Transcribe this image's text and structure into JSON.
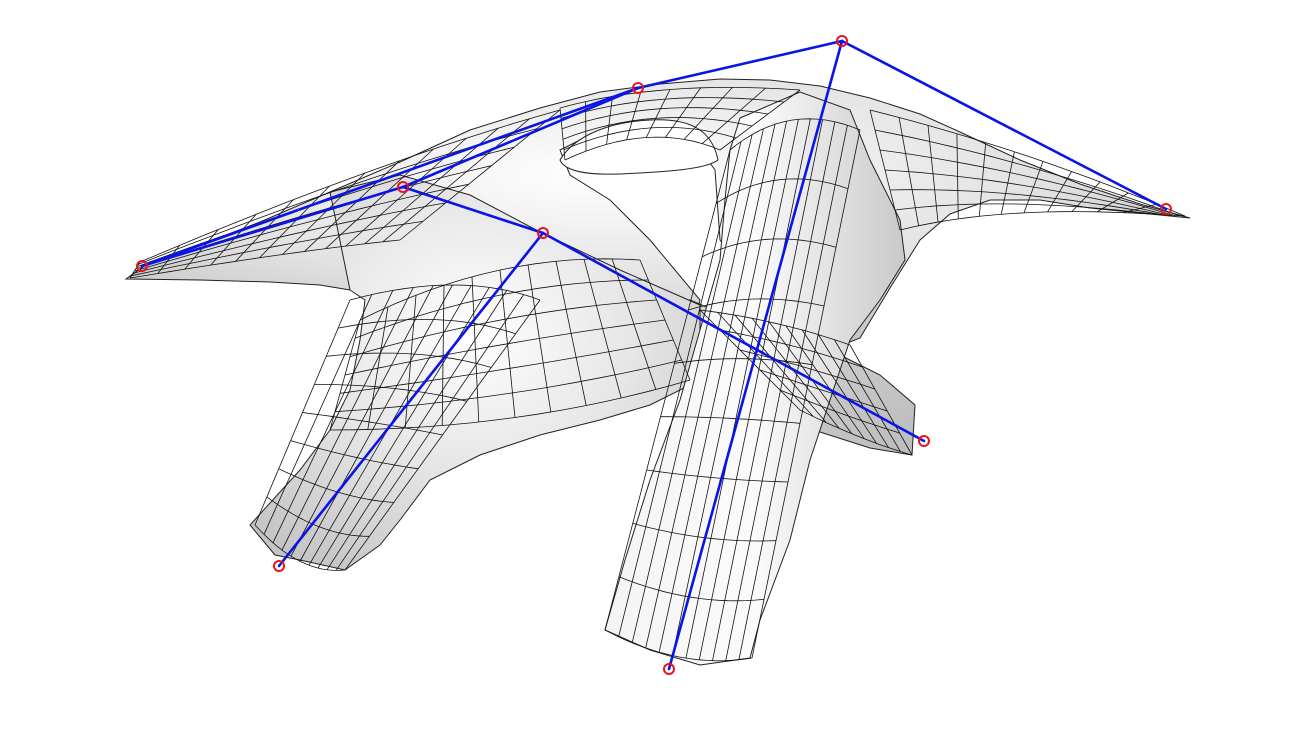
{
  "colors": {
    "background": "#ffffff",
    "surface_light": "#fafafa",
    "surface_mid": "#d9d9d9",
    "surface_dark": "#b8b8b8",
    "mesh": "#111111",
    "control_polygon": "#0a14e6",
    "control_point": "#e8141e"
  },
  "scene": {
    "type": "subdivision-surface-with-control-cage",
    "control_point_count": 9,
    "legs": 4
  }
}
